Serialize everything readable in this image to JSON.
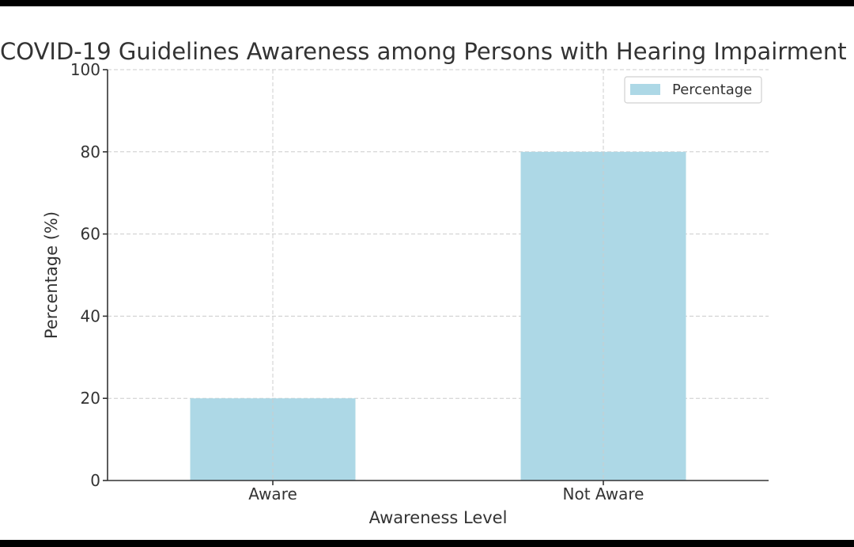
{
  "chart_data": {
    "type": "bar",
    "title": "COVID-19 Guidelines Awareness among Persons with Hearing Impairment",
    "xlabel": "Awareness Level",
    "ylabel": "Percentage (%)",
    "categories": [
      "Aware",
      "Not Aware"
    ],
    "series": [
      {
        "name": "Percentage",
        "values": [
          20,
          80
        ],
        "color": "#add8e6"
      }
    ],
    "ylim": [
      0,
      100
    ],
    "yticks": [
      0,
      20,
      40,
      60,
      80,
      100
    ],
    "grid": true,
    "legend_position": "top-right"
  }
}
